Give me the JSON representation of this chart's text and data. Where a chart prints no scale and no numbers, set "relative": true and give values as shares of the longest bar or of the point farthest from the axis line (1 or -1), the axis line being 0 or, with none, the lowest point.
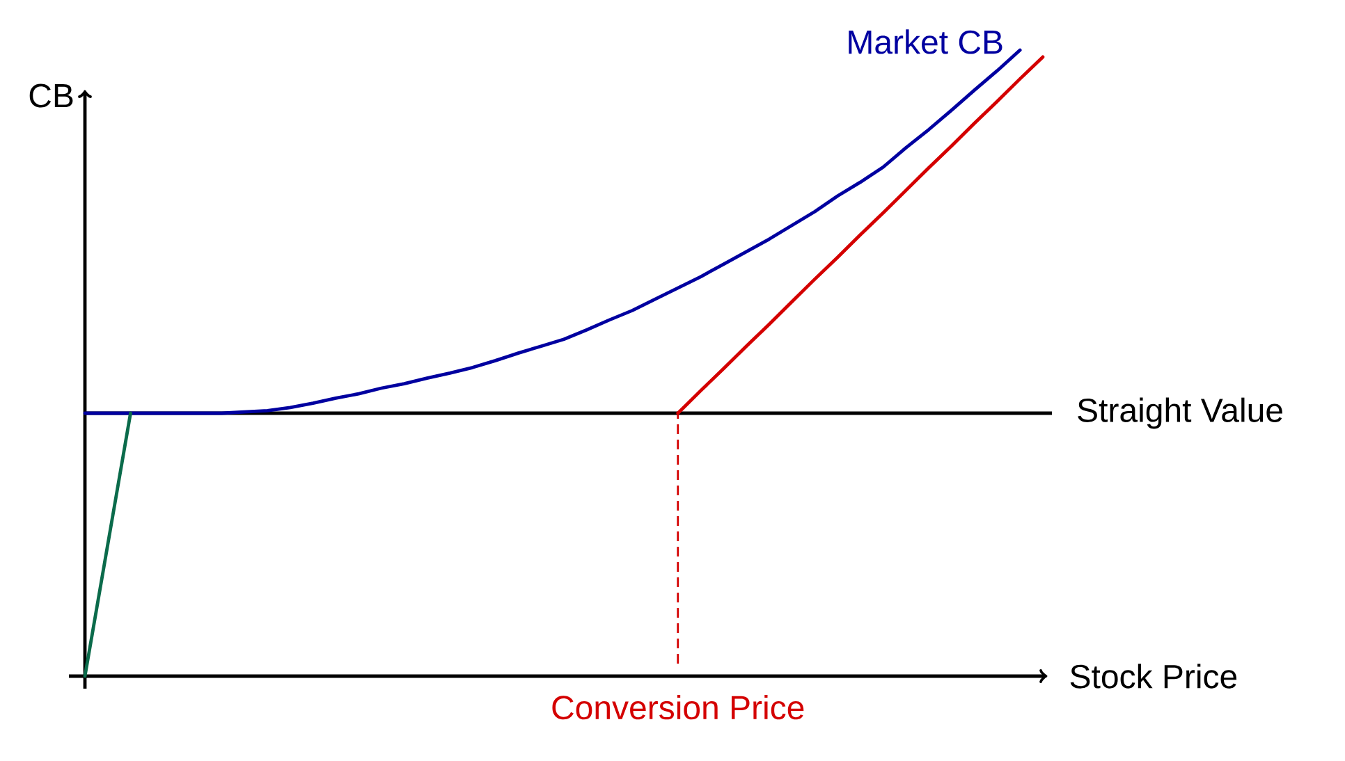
{
  "chart_data": {
    "type": "line",
    "relative": true,
    "xlabel": "Stock Price",
    "ylabel": "CB",
    "categories": [
      null,
      null,
      null,
      null,
      null,
      null,
      null,
      null,
      null,
      null,
      null,
      null,
      null,
      null,
      null,
      null,
      null,
      null,
      null,
      null,
      null,
      null,
      null,
      null,
      null,
      null,
      null,
      null,
      null,
      null,
      null,
      null,
      null,
      null,
      null,
      null,
      null,
      null,
      null,
      null,
      null,
      null,
      null
    ],
    "series": [
      {
        "name": "Market CB",
        "color": "#0000a0",
        "values": [
          0.42,
          0.42,
          0.42,
          0.42,
          0.42,
          0.42,
          0.42,
          0.422,
          0.424,
          0.429,
          0.436,
          0.444,
          0.451,
          0.46,
          0.467,
          0.476,
          0.484,
          0.493,
          0.504,
          0.516,
          0.527,
          0.538,
          0.553,
          0.569,
          0.584,
          0.602,
          0.62,
          0.638,
          0.658,
          0.678,
          0.698,
          0.72,
          0.742,
          0.767,
          0.789,
          0.813,
          0.844,
          0.873,
          0.904,
          0.936,
          0.967,
          1.0,
          null
        ]
      },
      {
        "color": "#d40000",
        "values": [
          null,
          null,
          null,
          null,
          null,
          null,
          null,
          null,
          null,
          null,
          null,
          null,
          null,
          null,
          null,
          null,
          null,
          null,
          null,
          null,
          null,
          null,
          null,
          null,
          null,
          null,
          0.42,
          0.456,
          0.491,
          0.527,
          0.562,
          0.598,
          0.634,
          0.669,
          0.705,
          0.74,
          0.776,
          0.812,
          0.847,
          0.883,
          0.918,
          0.954,
          0.989
        ]
      },
      {
        "color": "#0b6b4b",
        "values": [
          0,
          0.21,
          0.42,
          null,
          null,
          null,
          null,
          null,
          null,
          null,
          null,
          null,
          null,
          null,
          null,
          null,
          null,
          null,
          null,
          null,
          null,
          null,
          null,
          null,
          null,
          null,
          null,
          null,
          null,
          null,
          null,
          null,
          null,
          null,
          null,
          null,
          null,
          null,
          null,
          null,
          null,
          null,
          null
        ]
      }
    ],
    "ref_lines": [
      {
        "axis": "y",
        "value": 0.42,
        "label": "Straight Value",
        "color": "#000000"
      }
    ],
    "annotations": [
      "Conversion Price"
    ]
  }
}
